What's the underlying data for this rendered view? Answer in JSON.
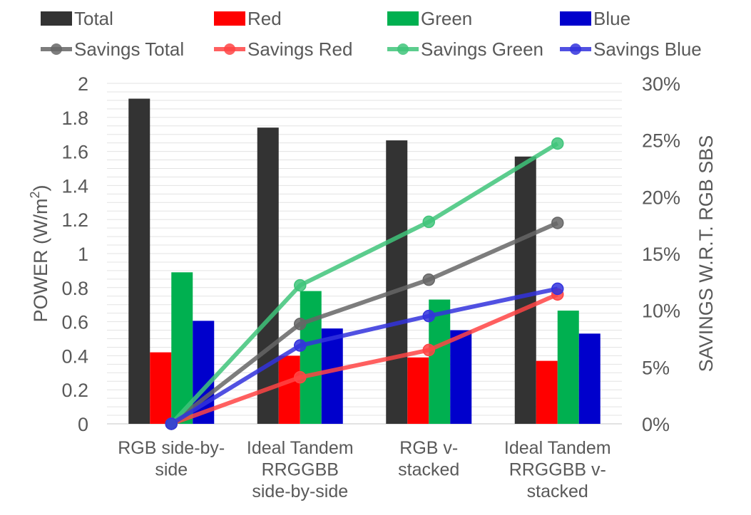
{
  "chart_data": {
    "type": "bar+line",
    "categories": [
      [
        "RGB side-by-",
        "side"
      ],
      [
        "Ideal Tandem",
        "RRGGBB",
        "side-by-side"
      ],
      [
        "RGB v-",
        "stacked"
      ],
      [
        "Ideal Tandem",
        "RRGGBB v-",
        "stacked"
      ]
    ],
    "bar_series": [
      {
        "name": "Total",
        "color": "#333333",
        "values": [
          1.91,
          1.74,
          1.665,
          1.57
        ]
      },
      {
        "name": "Red",
        "color": "#ff0000",
        "values": [
          0.42,
          0.4,
          0.39,
          0.37
        ]
      },
      {
        "name": "Green",
        "color": "#00b050",
        "values": [
          0.89,
          0.78,
          0.73,
          0.665
        ]
      },
      {
        "name": "Blue",
        "color": "#0000cc",
        "values": [
          0.605,
          0.56,
          0.55,
          0.53
        ]
      }
    ],
    "line_series": [
      {
        "name": "Savings Total",
        "color": "#666666",
        "values": [
          0.0,
          0.088,
          0.127,
          0.177
        ]
      },
      {
        "name": "Savings Red",
        "color": "#ff4444",
        "values": [
          0.0,
          0.041,
          0.065,
          0.114
        ]
      },
      {
        "name": "Savings Green",
        "color": "#3fc47a",
        "values": [
          0.0,
          0.122,
          0.178,
          0.247
        ]
      },
      {
        "name": "Savings Blue",
        "color": "#3333dd",
        "values": [
          0.0,
          0.069,
          0.095,
          0.119
        ]
      }
    ],
    "y_left": {
      "label": "POWER (W/m",
      "label_sup": "2",
      "label_end": ")",
      "min": 0,
      "max": 2,
      "ticks": [
        "0",
        "0.2",
        "0.4",
        "0.6",
        "0.8",
        "1",
        "1.2",
        "1.4",
        "1.6",
        "1.8",
        "2"
      ]
    },
    "y_right": {
      "label": "SAVINGS W.R.T. RGB SBS",
      "min": 0,
      "max": 0.3,
      "ticks": [
        "0%",
        "5%",
        "10%",
        "15%",
        "20%",
        "25%",
        "30%"
      ]
    },
    "legend": {
      "position": "top",
      "entries": [
        "Total",
        "Red",
        "Green",
        "Blue",
        "Savings Total",
        "Savings Red",
        "Savings Green",
        "Savings Blue"
      ]
    },
    "grid": true
  }
}
